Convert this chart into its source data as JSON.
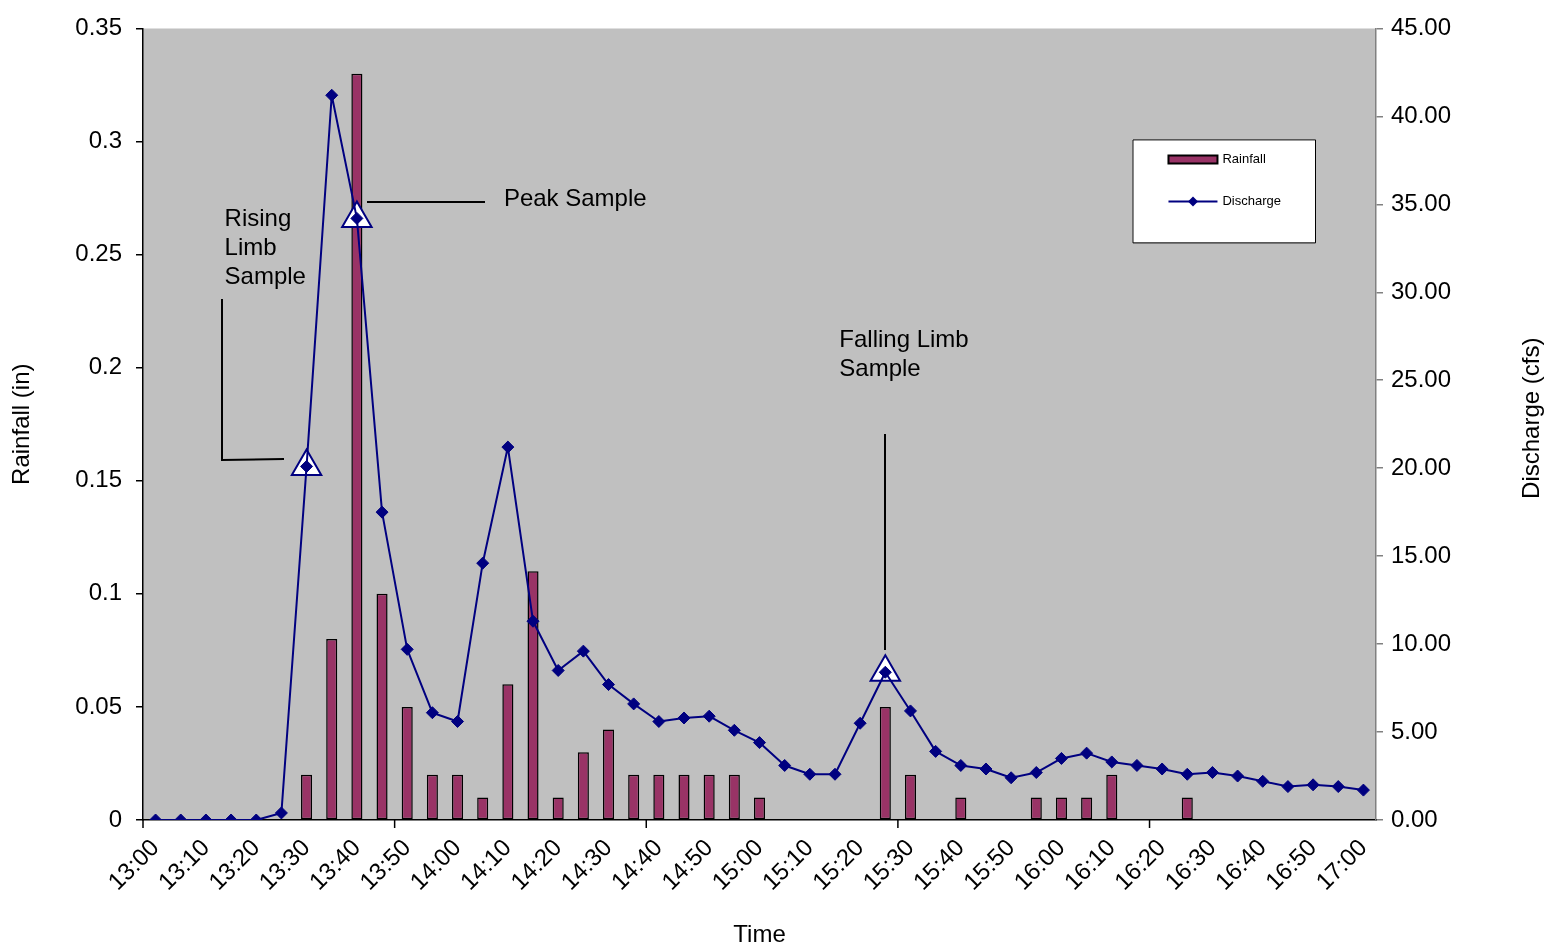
{
  "chart_data": {
    "type": "bar",
    "xlabel": "Time",
    "ylabel": "Rainfall (in)",
    "y2label": "Discharge (cfs)",
    "categories": [
      "13:00",
      null,
      "13:10",
      null,
      "13:20",
      null,
      "13:30",
      null,
      "13:40",
      null,
      "13:50",
      null,
      "14:00",
      null,
      "14:10",
      null,
      "14:20",
      null,
      "14:30",
      null,
      "14:40",
      null,
      "14:50",
      null,
      "15:00",
      null,
      "15:10",
      null,
      "15:20",
      null,
      "15:30",
      null,
      "15:40",
      null,
      "15:50",
      null,
      "16:00",
      null,
      "16:10",
      null,
      "16:20",
      null,
      "16:30",
      null,
      "16:40",
      null,
      "16:50",
      null,
      "17:00"
    ],
    "series": [
      {
        "name": "Rainfall",
        "color": "#993366",
        "values": [
          0,
          0,
          0,
          0,
          0,
          0,
          0.02,
          0.08,
          0.33,
          0.1,
          0.05,
          0.02,
          0.02,
          0.01,
          0.06,
          0.11,
          0.01,
          0.03,
          0.04,
          0.02,
          0.02,
          0.02,
          0.02,
          0.02,
          0.01,
          0,
          0,
          0,
          0,
          0.05,
          0.02,
          0,
          0.01,
          0,
          0,
          0.01,
          0.01,
          0.01,
          0.02,
          0,
          0,
          0.01,
          0,
          0,
          0,
          0,
          0,
          0,
          0
        ]
      },
      {
        "name": "Discharge",
        "type": "line",
        "axis": "y2",
        "marker": "diamond",
        "color": "#000080",
        "values": [
          0,
          0,
          0,
          0,
          0,
          0.4,
          20.1,
          41.2,
          34.2,
          17.5,
          9.7,
          6.1,
          5.6,
          14.6,
          21.2,
          11.3,
          8.5,
          9.6,
          7.7,
          6.6,
          5.6,
          5.8,
          5.9,
          5.1,
          4.4,
          3.1,
          2.6,
          2.6,
          5.5,
          8.4,
          6.2,
          3.9,
          3.1,
          2.9,
          2.4,
          2.7,
          3.5,
          3.8,
          3.3,
          3.1,
          2.9,
          2.6,
          2.7,
          2.5,
          2.2,
          1.9,
          2.0,
          1.9,
          1.7
        ]
      },
      {
        "type": "scatter",
        "axis": "y2",
        "marker": "triangle",
        "color": "#ffffff",
        "values": [
          null,
          null,
          null,
          null,
          null,
          null,
          20.1,
          null,
          34.2,
          null,
          null,
          null,
          null,
          null,
          null,
          null,
          null,
          null,
          null,
          null,
          null,
          null,
          null,
          null,
          null,
          null,
          null,
          null,
          null,
          8.4,
          null,
          null,
          null,
          null,
          null,
          null,
          null,
          null,
          null,
          null,
          null,
          null,
          null,
          null,
          null,
          null,
          null,
          null,
          null
        ]
      }
    ],
    "ylim": [
      0,
      0.35
    ],
    "yticks": [
      0,
      0.05,
      0.1,
      0.15,
      0.2,
      0.25,
      0.3,
      0.35
    ],
    "y2lim": [
      0,
      45
    ],
    "y2ticks": [
      {
        "value": 0,
        "label": "0.00"
      },
      {
        "value": 5,
        "label": "5.00"
      },
      {
        "value": 10,
        "label": "10.00"
      },
      {
        "value": 15,
        "label": "15.00"
      },
      {
        "value": 20,
        "label": "20.00"
      },
      {
        "value": 25,
        "label": "25.00"
      },
      {
        "value": 30,
        "label": "30.00"
      },
      {
        "value": 35,
        "label": "35.00"
      },
      {
        "value": 40,
        "label": "40.00"
      },
      {
        "value": 45,
        "label": "45.00"
      }
    ],
    "legend": "top right",
    "annotations": [
      "Rising Limb Sample",
      "Peak Sample",
      "Falling Limb Sample"
    ]
  }
}
